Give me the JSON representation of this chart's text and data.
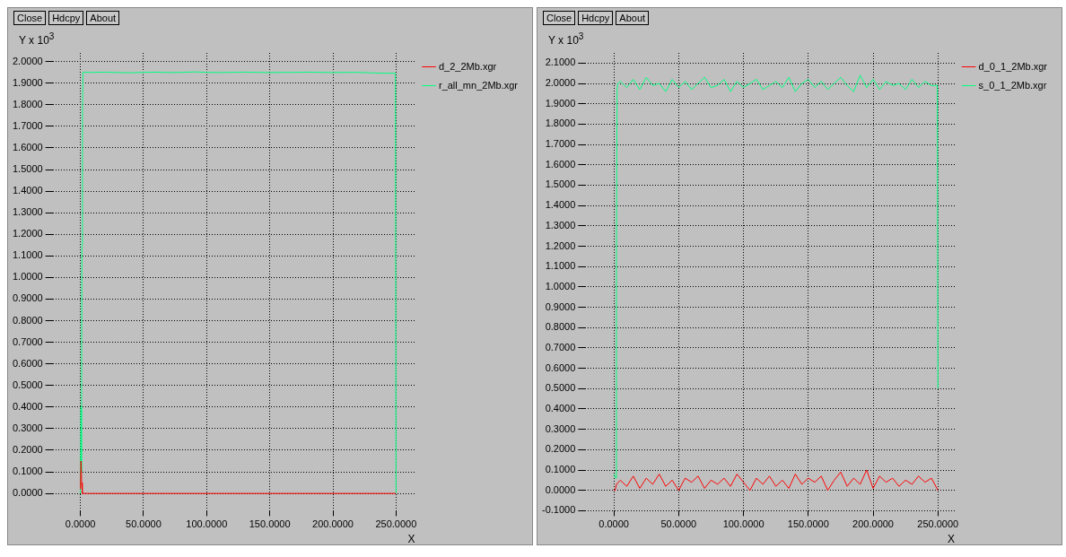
{
  "chart_data": [
    {
      "type": "line",
      "ylabel": "Y x 10$^{3}$",
      "xlabel": "X",
      "annotations": [
        "Close",
        "Hdcpy",
        "About"
      ],
      "legend": "right",
      "grid": true,
      "marker": "none",
      "line_style": "solid",
      "xlim": [
        -22,
        265
      ],
      "xticks": [
        {
          "value": 0,
          "label": "0.0000"
        },
        {
          "value": 50,
          "label": "50.0000"
        },
        {
          "value": 100,
          "label": "100.0000"
        },
        {
          "value": 150,
          "label": "150.0000"
        },
        {
          "value": 200,
          "label": "200.0000"
        },
        {
          "value": 250,
          "label": "250.0000"
        }
      ],
      "ylim": [
        -0.08,
        2.04
      ],
      "yticks": [
        {
          "value": 0,
          "label": "0.0000"
        },
        {
          "value": 0.1,
          "label": "0.1000"
        },
        {
          "value": 0.2,
          "label": "0.2000"
        },
        {
          "value": 0.3,
          "label": "0.3000"
        },
        {
          "value": 0.4,
          "label": "0.4000"
        },
        {
          "value": 0.5,
          "label": "0.5000"
        },
        {
          "value": 0.6,
          "label": "0.6000"
        },
        {
          "value": 0.7,
          "label": "0.7000"
        },
        {
          "value": 0.8,
          "label": "0.8000"
        },
        {
          "value": 0.9,
          "label": "0.9000"
        },
        {
          "value": 1,
          "label": "1.0000"
        },
        {
          "value": 1.1,
          "label": "1.1000"
        },
        {
          "value": 1.2,
          "label": "1.2000"
        },
        {
          "value": 1.3,
          "label": "1.3000"
        },
        {
          "value": 1.4,
          "label": "1.4000"
        },
        {
          "value": 1.5,
          "label": "1.5000"
        },
        {
          "value": 1.6,
          "label": "1.6000"
        },
        {
          "value": 1.7,
          "label": "1.7000"
        },
        {
          "value": 1.8,
          "label": "1.8000"
        },
        {
          "value": 1.9,
          "label": "1.9000"
        },
        {
          "value": 2,
          "label": "2.0000"
        }
      ],
      "series": [
        {
          "name": "d_2_2Mb.xgr",
          "color": "#ff0000",
          "x": [
            0,
            0.5,
            1,
            1.5,
            250
          ],
          "values": [
            0.02,
            0.15,
            0.05,
            0,
            0
          ]
        },
        {
          "name": "r_all_mn_2Mb.xgr",
          "color": "#00ff7f",
          "x": [
            0,
            0.5,
            0.8,
            1.2,
            1.6,
            2,
            10,
            20,
            30,
            40,
            50,
            60,
            70,
            80,
            90,
            100,
            110,
            120,
            130,
            140,
            150,
            160,
            170,
            180,
            190,
            200,
            210,
            220,
            230,
            240,
            249.5,
            250
          ],
          "values": [
            0,
            0.4,
            0.1,
            1.15,
            1.75,
            1.95,
            1.95,
            1.951,
            1.949,
            1.948,
            1.95,
            1.951,
            1.949,
            1.95,
            1.952,
            1.95,
            1.949,
            1.95,
            1.951,
            1.95,
            1.949,
            1.95,
            1.95,
            1.951,
            1.95,
            1.949,
            1.95,
            1.95,
            1.948,
            1.946,
            1.946,
            0
          ]
        }
      ]
    },
    {
      "type": "line",
      "ylabel": "Y x 10$^{3}$",
      "xlabel": "X",
      "annotations": [
        "Close",
        "Hdcpy",
        "About"
      ],
      "legend": "right",
      "grid": true,
      "marker": "none",
      "line_style": "solid",
      "xlim": [
        -22,
        263
      ],
      "xticks": [
        {
          "value": 0,
          "label": "0.0000"
        },
        {
          "value": 50,
          "label": "50.0000"
        },
        {
          "value": 100,
          "label": "100.0000"
        },
        {
          "value": 150,
          "label": "150.0000"
        },
        {
          "value": 200,
          "label": "200.0000"
        },
        {
          "value": 250,
          "label": "250.0000"
        }
      ],
      "ylim": [
        -0.1,
        2.15
      ],
      "yticks": [
        {
          "value": -0.1,
          "label": "-0.1000"
        },
        {
          "value": 0,
          "label": "0.0000"
        },
        {
          "value": 0.1,
          "label": "0.1000"
        },
        {
          "value": 0.2,
          "label": "0.2000"
        },
        {
          "value": 0.3,
          "label": "0.3000"
        },
        {
          "value": 0.4,
          "label": "0.4000"
        },
        {
          "value": 0.5,
          "label": "0.5000"
        },
        {
          "value": 0.6,
          "label": "0.6000"
        },
        {
          "value": 0.7,
          "label": "0.7000"
        },
        {
          "value": 0.8,
          "label": "0.8000"
        },
        {
          "value": 0.9,
          "label": "0.9000"
        },
        {
          "value": 1,
          "label": "1.0000"
        },
        {
          "value": 1.1,
          "label": "1.1000"
        },
        {
          "value": 1.2,
          "label": "1.2000"
        },
        {
          "value": 1.3,
          "label": "1.3000"
        },
        {
          "value": 1.4,
          "label": "1.4000"
        },
        {
          "value": 1.5,
          "label": "1.5000"
        },
        {
          "value": 1.6,
          "label": "1.6000"
        },
        {
          "value": 1.7,
          "label": "1.7000"
        },
        {
          "value": 1.8,
          "label": "1.8000"
        },
        {
          "value": 1.9,
          "label": "1.9000"
        },
        {
          "value": 2,
          "label": "2.0000"
        },
        {
          "value": 2.1,
          "label": "2.1000"
        }
      ],
      "series": [
        {
          "name": "d_0_1_2Mb.xgr",
          "color": "#ff0000",
          "x": [
            0,
            1,
            2,
            5,
            10,
            15,
            20,
            25,
            30,
            35,
            40,
            45,
            50,
            55,
            60,
            65,
            70,
            75,
            80,
            85,
            90,
            95,
            100,
            105,
            110,
            115,
            120,
            125,
            130,
            135,
            140,
            145,
            150,
            155,
            160,
            165,
            170,
            175,
            180,
            185,
            190,
            195,
            200,
            205,
            210,
            215,
            220,
            225,
            230,
            235,
            240,
            245,
            250
          ],
          "values": [
            0,
            0,
            0.03,
            0.05,
            0.02,
            0.07,
            0.01,
            0.06,
            0.03,
            0.08,
            0.02,
            0.05,
            0,
            0.06,
            0.04,
            0.07,
            0.01,
            0.05,
            0.03,
            0.06,
            0.02,
            0.08,
            0.04,
            0,
            0.06,
            0.03,
            0.07,
            0.02,
            0.05,
            0.01,
            0.08,
            0.03,
            0.06,
            0.04,
            0.07,
            0,
            0.05,
            0.09,
            0.02,
            0.06,
            0.03,
            0.1,
            0.01,
            0.07,
            0.04,
            0.06,
            0.02,
            0.05,
            0.03,
            0.07,
            0.04,
            0.06,
            0
          ]
        },
        {
          "name": "s_0_1_2Mb.xgr",
          "color": "#00ff7f",
          "x": [
            0,
            1.5,
            2,
            2.5,
            3,
            5,
            10,
            15,
            20,
            25,
            30,
            35,
            40,
            45,
            50,
            55,
            60,
            65,
            70,
            75,
            80,
            85,
            90,
            95,
            100,
            105,
            110,
            115,
            120,
            125,
            130,
            135,
            140,
            145,
            150,
            155,
            160,
            165,
            170,
            175,
            180,
            185,
            190,
            195,
            200,
            205,
            210,
            215,
            220,
            225,
            230,
            235,
            240,
            245,
            249.5,
            250
          ],
          "values": [
            0.08,
            0.06,
            1.15,
            1.97,
            2,
            2.01,
            1.98,
            2.02,
            1.97,
            2.03,
            1.99,
            2,
            1.96,
            2.02,
            1.98,
            2.01,
            1.97,
            2,
            2.03,
            1.98,
            1.99,
            2.02,
            1.96,
            2.01,
            1.98,
            2,
            2.02,
            1.97,
            1.99,
            2.01,
            1.98,
            2.03,
            1.96,
            2,
            2.02,
            1.98,
            2.01,
            1.97,
            2,
            2.03,
            1.99,
            1.96,
            2.04,
            1.98,
            2.02,
            1.97,
            2.01,
            1.99,
            2,
            1.97,
            2.02,
            1.98,
            2.01,
            1.99,
            1.99,
            0.5
          ]
        }
      ]
    }
  ]
}
